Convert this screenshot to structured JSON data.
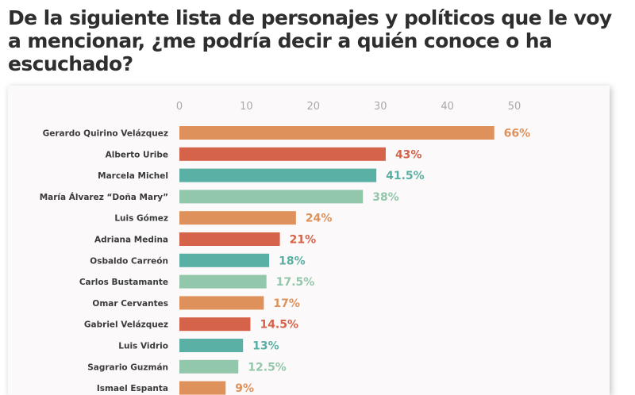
{
  "title": "De la siguiente lista de personajes y políticos que le voy a mencionar, ¿me podría decir a quién conoce o ha escuchado?",
  "colors": {
    "orange": "#de915a",
    "red": "#d4634a",
    "teal": "#5ab0a4",
    "mint": "#93c7ab"
  },
  "chart_data": {
    "type": "bar",
    "orientation": "horizontal",
    "title": "De la siguiente lista de personajes y políticos que le voy a mencionar, ¿me podría decir a quién conoce o ha escuchado?",
    "xlabel": "",
    "ylabel": "",
    "xlim": [
      0,
      50
    ],
    "x_ticks": [
      "0",
      "10",
      "20",
      "30",
      "40",
      "50"
    ],
    "x_tick_values": [
      0,
      10,
      20,
      30,
      40,
      50
    ],
    "x_axis_position": "top",
    "grid": false,
    "legend": null,
    "categories": [
      "Gerardo Quirino Velázquez",
      "Alberto Uribe",
      "Marcela Michel",
      "María Álvarez “Doña Mary”",
      "Luis Gómez",
      "Adriana Medina",
      "Osbaldo Carreón",
      "Carlos Bustamante",
      "Omar Cervantes",
      "Gabriel Velázquez",
      "Luis Vidrio",
      "Sagrario Guzmán",
      "Ismael Espanta"
    ],
    "values": [
      66,
      43,
      41.5,
      38,
      24,
      21,
      18,
      17.5,
      17,
      14.5,
      13,
      12.5,
      9
    ],
    "data_labels": [
      "66%",
      "43%",
      "41.5%",
      "38%",
      "24%",
      "21%",
      "18%",
      "17.5%",
      "17%",
      "14.5%",
      "13%",
      "12.5%",
      "9%"
    ],
    "bar_axis_values": [
      47.0,
      30.8,
      29.4,
      27.4,
      17.4,
      15.0,
      13.4,
      13.0,
      12.6,
      10.6,
      9.5,
      8.8,
      6.9
    ],
    "bar_colors": [
      "orange",
      "red",
      "teal",
      "mint",
      "orange",
      "red",
      "teal",
      "mint",
      "orange",
      "red",
      "teal",
      "mint",
      "orange"
    ]
  }
}
